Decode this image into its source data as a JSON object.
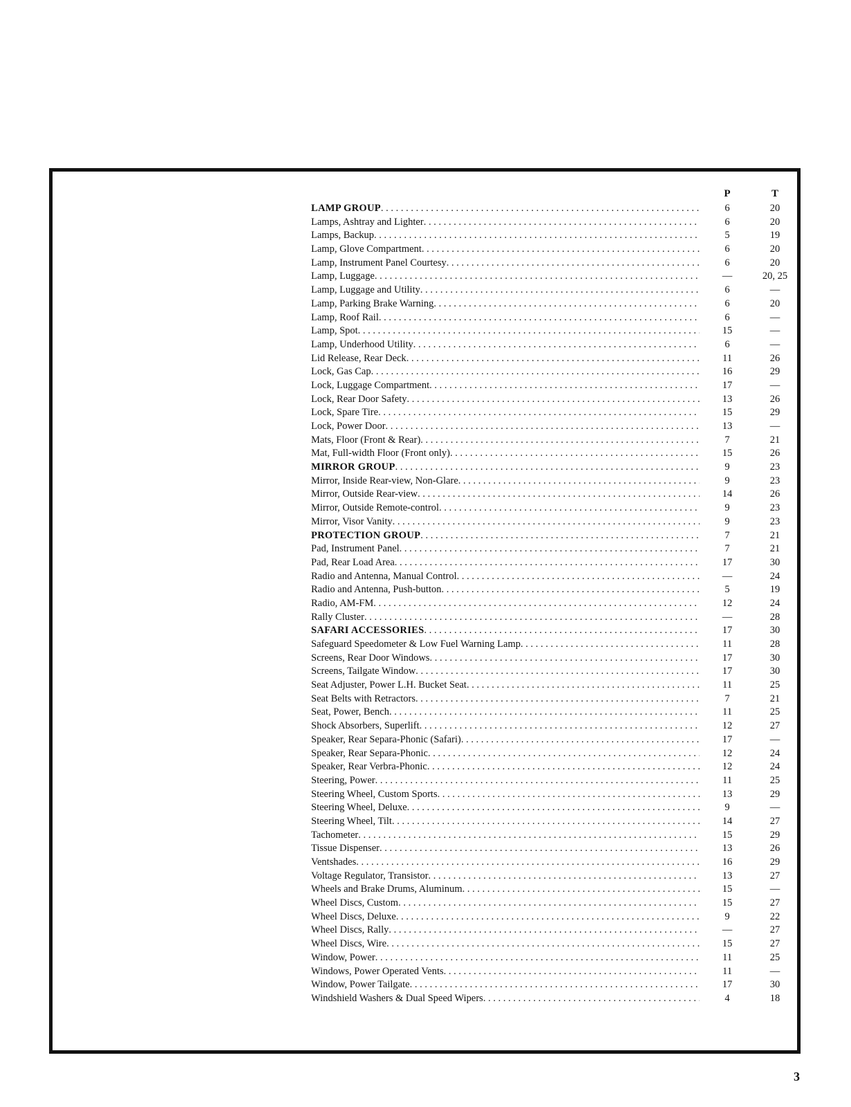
{
  "columns": {
    "p": "P",
    "t": "T"
  },
  "page_number": "3",
  "entries": [
    {
      "name": "LAMP GROUP",
      "group": true,
      "p": "6",
      "t": "20"
    },
    {
      "name": "Lamps, Ashtray and Lighter",
      "p": "6",
      "t": "20"
    },
    {
      "name": "Lamps, Backup",
      "p": "5",
      "t": "19"
    },
    {
      "name": "Lamp, Glove Compartment",
      "p": "6",
      "t": "20"
    },
    {
      "name": "Lamp, Instrument Panel Courtesy",
      "p": "6",
      "t": "20"
    },
    {
      "name": "Lamp, Luggage",
      "p": "—",
      "t": "20, 25"
    },
    {
      "name": "Lamp, Luggage and Utility",
      "p": "6",
      "t": "—"
    },
    {
      "name": "Lamp, Parking Brake Warning",
      "p": "6",
      "t": "20"
    },
    {
      "name": "Lamp, Roof Rail",
      "p": "6",
      "t": "—"
    },
    {
      "name": "Lamp, Spot",
      "p": "15",
      "t": "—"
    },
    {
      "name": "Lamp, Underhood Utility",
      "p": "6",
      "t": "—"
    },
    {
      "name": "Lid Release, Rear Deck",
      "p": "11",
      "t": "26"
    },
    {
      "name": "Lock, Gas Cap",
      "p": "16",
      "t": "29"
    },
    {
      "name": "Lock, Luggage Compartment",
      "p": "17",
      "t": "—"
    },
    {
      "name": "Lock, Rear Door Safety",
      "p": "13",
      "t": "26"
    },
    {
      "name": "Lock, Spare Tire",
      "p": "15",
      "t": "29"
    },
    {
      "name": "Lock, Power Door",
      "p": "13",
      "t": "—"
    },
    {
      "name": "Mats, Floor (Front & Rear)",
      "p": "7",
      "t": "21"
    },
    {
      "name": "Mat, Full-width Floor (Front only)",
      "p": "15",
      "t": "26"
    },
    {
      "name": "MIRROR GROUP",
      "group": true,
      "p": "9",
      "t": "23"
    },
    {
      "name": "Mirror, Inside Rear-view, Non-Glare",
      "p": "9",
      "t": "23"
    },
    {
      "name": "Mirror, Outside Rear-view",
      "p": "14",
      "t": "26"
    },
    {
      "name": "Mirror, Outside Remote-control",
      "p": "9",
      "t": "23"
    },
    {
      "name": "Mirror, Visor Vanity",
      "p": "9",
      "t": "23"
    },
    {
      "name": "PROTECTION GROUP",
      "group": true,
      "p": "7",
      "t": "21"
    },
    {
      "name": "Pad, Instrument Panel",
      "p": "7",
      "t": "21"
    },
    {
      "name": "Pad, Rear Load Area",
      "p": "17",
      "t": "30"
    },
    {
      "name": "Radio and Antenna, Manual Control",
      "p": "—",
      "t": "24"
    },
    {
      "name": "Radio and Antenna, Push-button",
      "p": "5",
      "t": "19"
    },
    {
      "name": "Radio, AM-FM",
      "p": "12",
      "t": "24"
    },
    {
      "name": "Rally Cluster",
      "p": "—",
      "t": "28"
    },
    {
      "name": "SAFARI ACCESSORIES",
      "group": true,
      "p": "17",
      "t": "30"
    },
    {
      "name": "Safeguard Speedometer & Low Fuel Warning Lamp",
      "p": "11",
      "t": "28"
    },
    {
      "name": "Screens, Rear Door Windows",
      "p": "17",
      "t": "30"
    },
    {
      "name": "Screens, Tailgate Window",
      "p": "17",
      "t": "30"
    },
    {
      "name": "Seat Adjuster, Power L.H. Bucket Seat",
      "p": "11",
      "t": "25"
    },
    {
      "name": "Seat Belts with Retractors",
      "p": "7",
      "t": "21"
    },
    {
      "name": "Seat, Power, Bench",
      "p": "11",
      "t": "25"
    },
    {
      "name": "Shock Absorbers, Superlift",
      "p": "12",
      "t": "27"
    },
    {
      "name": "Speaker, Rear Separa-Phonic (Safari)",
      "p": "17",
      "t": "—"
    },
    {
      "name": "Speaker, Rear Separa-Phonic",
      "p": "12",
      "t": "24"
    },
    {
      "name": "Speaker, Rear Verbra-Phonic",
      "p": "12",
      "t": "24"
    },
    {
      "name": "Steering, Power",
      "p": "11",
      "t": "25"
    },
    {
      "name": "Steering Wheel, Custom Sports",
      "p": "13",
      "t": "29"
    },
    {
      "name": "Steering Wheel, Deluxe",
      "p": "9",
      "t": "—"
    },
    {
      "name": "Steering Wheel, Tilt",
      "p": "14",
      "t": "27"
    },
    {
      "name": "Tachometer",
      "p": "15",
      "t": "29"
    },
    {
      "name": "Tissue Dispenser",
      "p": "13",
      "t": "26"
    },
    {
      "name": "Ventshades",
      "p": "16",
      "t": "29"
    },
    {
      "name": "Voltage Regulator, Transistor",
      "p": "13",
      "t": "27"
    },
    {
      "name": "Wheels and Brake Drums, Aluminum",
      "p": "15",
      "t": "—"
    },
    {
      "name": "Wheel Discs, Custom",
      "p": "15",
      "t": "27"
    },
    {
      "name": "Wheel Discs, Deluxe",
      "p": "9",
      "t": "22"
    },
    {
      "name": "Wheel Discs, Rally",
      "p": "—",
      "t": "27"
    },
    {
      "name": "Wheel Discs, Wire",
      "p": "15",
      "t": "27"
    },
    {
      "name": "Window, Power",
      "p": "11",
      "t": "25"
    },
    {
      "name": "Windows, Power Operated Vents",
      "p": "11",
      "t": "—"
    },
    {
      "name": "Window, Power Tailgate",
      "p": "17",
      "t": "30"
    },
    {
      "name": "Windshield Washers & Dual Speed Wipers",
      "p": "4",
      "t": "18"
    }
  ]
}
